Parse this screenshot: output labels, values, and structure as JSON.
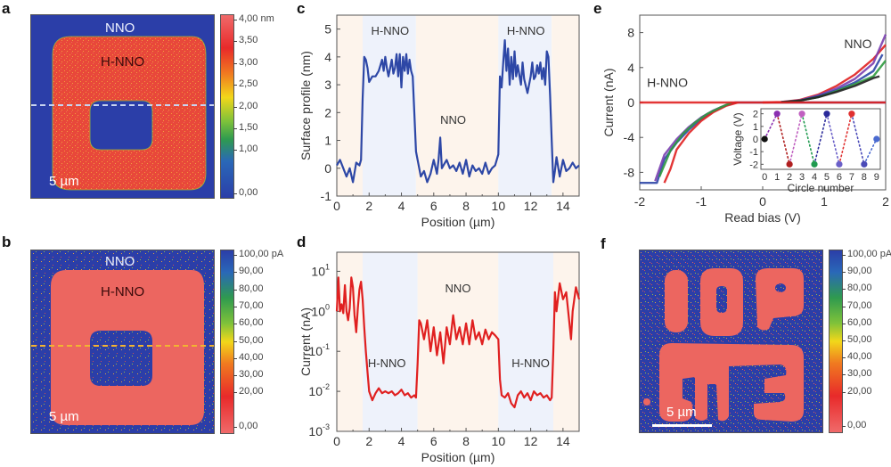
{
  "panels": {
    "a": {
      "letter": "a",
      "label_top": "NNO",
      "label_inner": "H-NNO",
      "scalebar": "5 µm",
      "colorbar_ticks": [
        "4,00 nm",
        "3,50",
        "3,00",
        "2,50",
        "2,00",
        "1,50",
        "1,00",
        "0,00"
      ],
      "line_color": "#c8d4f0"
    },
    "b": {
      "letter": "b",
      "label_top": "NNO",
      "label_inner": "H-NNO",
      "scalebar": "5 µm",
      "colorbar_ticks": [
        "100,00 pA",
        "90,00",
        "80,00",
        "70,00",
        "60,00",
        "50,00",
        "40,00",
        "30,00",
        "20,00",
        "0,00"
      ],
      "line_color": "#f2b431"
    },
    "c": {
      "letter": "c"
    },
    "d": {
      "letter": "d"
    },
    "e": {
      "letter": "e"
    },
    "f": {
      "letter": "f",
      "scalebar": "5 µm",
      "colorbar_ticks": [
        "100,00 pA",
        "90,00",
        "80,00",
        "70,00",
        "60,00",
        "50,00",
        "40,00",
        "30,00",
        "20,00",
        "0,00"
      ]
    }
  },
  "colors": {
    "map_blue": "#2b3ea8",
    "map_red_a": "#e8483a",
    "map_red_b": "#ec6660",
    "line_blue": "#2d47a6",
    "line_red": "#e02020",
    "band_hnno": "#eef2fb",
    "band_nno": "#fdf4ec"
  },
  "chart_data": [
    {
      "id": "c",
      "type": "line",
      "title": "",
      "xlabel": "Position (µm)",
      "ylabel": "Surface profile (nm)",
      "xlim": [
        0,
        15
      ],
      "ylim": [
        -1,
        5.5
      ],
      "xticks": [
        0,
        2,
        4,
        6,
        8,
        10,
        12,
        14
      ],
      "yticks": [
        -1,
        0,
        1,
        2,
        3,
        4,
        5
      ],
      "annotations": [
        {
          "text": "H-NNO",
          "x": 3.3,
          "y": 4.8
        },
        {
          "text": "NNO",
          "x": 7.2,
          "y": 1.6
        },
        {
          "text": "H-NNO",
          "x": 11.7,
          "y": 4.8
        }
      ],
      "bands": [
        {
          "from": 0,
          "to": 1.6,
          "kind": "NNO"
        },
        {
          "from": 1.6,
          "to": 4.9,
          "kind": "H-NNO"
        },
        {
          "from": 4.9,
          "to": 10.0,
          "kind": "NNO"
        },
        {
          "from": 10.0,
          "to": 13.3,
          "kind": "H-NNO"
        },
        {
          "from": 13.3,
          "to": 15,
          "kind": "NNO"
        }
      ],
      "series": [
        {
          "name": "profile",
          "x": [
            0,
            0.2,
            0.4,
            0.6,
            0.8,
            1.0,
            1.2,
            1.4,
            1.5,
            1.6,
            1.7,
            1.8,
            1.9,
            2.0,
            2.2,
            2.4,
            2.6,
            2.7,
            2.8,
            2.9,
            3.0,
            3.1,
            3.2,
            3.4,
            3.5,
            3.6,
            3.7,
            3.8,
            3.9,
            4.0,
            4.1,
            4.2,
            4.3,
            4.4,
            4.5,
            4.6,
            4.7,
            4.8,
            4.9,
            5.0,
            5.2,
            5.4,
            5.6,
            5.8,
            6.0,
            6.2,
            6.3,
            6.4,
            6.5,
            6.6,
            6.8,
            7.0,
            7.2,
            7.4,
            7.6,
            7.8,
            8.0,
            8.2,
            8.4,
            8.6,
            8.8,
            9.0,
            9.2,
            9.4,
            9.6,
            9.8,
            9.9,
            10.0,
            10.1,
            10.2,
            10.3,
            10.4,
            10.5,
            10.6,
            10.7,
            10.8,
            10.9,
            11.0,
            11.1,
            11.2,
            11.4,
            11.5,
            11.6,
            11.8,
            12.0,
            12.1,
            12.2,
            12.3,
            12.4,
            12.5,
            12.6,
            12.7,
            12.8,
            12.9,
            13.0,
            13.1,
            13.2,
            13.3,
            13.4,
            13.5,
            13.6,
            13.8,
            14.0,
            14.2,
            14.4,
            14.6,
            14.8,
            15.0
          ],
          "y": [
            0.1,
            0.3,
            0.0,
            -0.3,
            0.0,
            -0.5,
            0.2,
            0.1,
            0.3,
            2.5,
            4.0,
            3.9,
            3.6,
            3.1,
            3.3,
            3.3,
            3.5,
            3.7,
            3.9,
            3.5,
            4.0,
            3.6,
            3.3,
            3.9,
            3.4,
            3.6,
            4.1,
            3.3,
            4.1,
            2.9,
            4.0,
            3.5,
            4.1,
            3.4,
            3.9,
            3.5,
            3.3,
            2.0,
            0.6,
            0.3,
            -0.3,
            -0.1,
            -0.5,
            -0.2,
            0.3,
            -0.2,
            0.3,
            1.1,
            0.0,
            0.1,
            0.3,
            0.0,
            0.1,
            -0.1,
            0.2,
            -0.2,
            0.3,
            -0.3,
            0.1,
            -0.1,
            0.0,
            -0.2,
            0.2,
            -0.2,
            0.0,
            0.1,
            0.3,
            0.5,
            3.3,
            2.9,
            3.8,
            4.6,
            3.5,
            4.3,
            3.0,
            4.0,
            3.2,
            4.2,
            3.3,
            3.7,
            3.0,
            3.8,
            3.2,
            2.7,
            3.3,
            3.8,
            3.2,
            3.3,
            3.7,
            3.4,
            3.8,
            3.2,
            3.6,
            3.0,
            4.2,
            4.0,
            2.6,
            1.0,
            -0.5,
            -0.1,
            0.4,
            -0.3,
            0.3,
            -0.1,
            0.0,
            0.2,
            0.0,
            0.1
          ]
        }
      ]
    },
    {
      "id": "d",
      "type": "line",
      "title": "",
      "xlabel": "Position (µm)",
      "ylabel": "Current (nA)",
      "yscale": "log",
      "xlim": [
        0,
        15
      ],
      "ylim": [
        0.001,
        30
      ],
      "xticks": [
        0,
        2,
        4,
        6,
        8,
        10,
        12,
        14
      ],
      "yticks": [
        "10^1",
        "10^0",
        "10^-1",
        "10^-2",
        "10^-3"
      ],
      "annotations": [
        {
          "text": "NNO",
          "x": 7.5,
          "y": 3.0
        },
        {
          "text": "H-NNO",
          "x": 3.1,
          "y": 0.04
        },
        {
          "text": "H-NNO",
          "x": 12.0,
          "y": 0.04
        }
      ],
      "bands": [
        {
          "from": 0,
          "to": 1.6,
          "kind": "NNO"
        },
        {
          "from": 1.6,
          "to": 5.0,
          "kind": "H-NNO"
        },
        {
          "from": 5.0,
          "to": 10.0,
          "kind": "NNO"
        },
        {
          "from": 10.0,
          "to": 13.4,
          "kind": "H-NNO"
        },
        {
          "from": 13.4,
          "to": 15,
          "kind": "NNO"
        }
      ],
      "series": [
        {
          "name": "current",
          "x": [
            0,
            0.1,
            0.2,
            0.3,
            0.4,
            0.5,
            0.6,
            0.7,
            0.8,
            0.9,
            1.0,
            1.1,
            1.2,
            1.3,
            1.4,
            1.5,
            1.6,
            1.7,
            1.8,
            1.9,
            2.0,
            2.2,
            2.4,
            2.6,
            2.8,
            3.0,
            3.2,
            3.4,
            3.6,
            3.8,
            4.0,
            4.2,
            4.4,
            4.6,
            4.8,
            4.9,
            5.0,
            5.1,
            5.2,
            5.4,
            5.6,
            5.8,
            6.0,
            6.2,
            6.4,
            6.6,
            6.8,
            7.0,
            7.2,
            7.4,
            7.6,
            7.8,
            8.0,
            8.2,
            8.4,
            8.6,
            8.8,
            9.0,
            9.2,
            9.4,
            9.6,
            9.8,
            10.0,
            10.1,
            10.2,
            10.4,
            10.6,
            10.8,
            11.0,
            11.2,
            11.4,
            11.6,
            11.8,
            12.0,
            12.2,
            12.4,
            12.6,
            12.8,
            13.0,
            13.2,
            13.3,
            13.4,
            13.5,
            13.6,
            13.8,
            14.0,
            14.2,
            14.4,
            14.5,
            14.6,
            14.8,
            15.0
          ],
          "y": [
            1.0,
            7.0,
            1.0,
            1.5,
            0.9,
            4.5,
            1.0,
            0.6,
            1.2,
            7.0,
            4.0,
            0.8,
            0.3,
            1.2,
            3.5,
            5.5,
            2.0,
            0.4,
            0.1,
            0.03,
            0.01,
            0.006,
            0.009,
            0.012,
            0.009,
            0.01,
            0.009,
            0.01,
            0.008,
            0.009,
            0.011,
            0.008,
            0.009,
            0.007,
            0.008,
            0.007,
            0.05,
            0.6,
            0.5,
            0.2,
            0.6,
            0.1,
            0.4,
            0.08,
            0.3,
            0.05,
            0.4,
            0.15,
            0.8,
            0.2,
            0.4,
            0.15,
            0.5,
            0.15,
            0.6,
            0.2,
            0.3,
            0.15,
            0.35,
            0.2,
            0.3,
            0.25,
            0.2,
            0.02,
            0.008,
            0.007,
            0.009,
            0.005,
            0.004,
            0.008,
            0.01,
            0.007,
            0.009,
            0.006,
            0.01,
            0.008,
            0.009,
            0.007,
            0.008,
            0.006,
            0.007,
            0.1,
            3.0,
            1.0,
            5.0,
            2.0,
            3.0,
            0.5,
            0.2,
            1.0,
            4.0,
            2.0
          ]
        }
      ]
    },
    {
      "id": "e",
      "type": "line",
      "title": "",
      "xlabel": "Read bias (V)",
      "ylabel": "Current (nA)",
      "xlim": [
        -2,
        2
      ],
      "ylim": [
        -10,
        10
      ],
      "xticks": [
        -2,
        -1,
        0,
        1,
        2
      ],
      "yticks": [
        -8,
        -4,
        0,
        4,
        8
      ],
      "annotations": [
        {
          "text": "H-NNO",
          "x": -1.55,
          "y": 1.8
        },
        {
          "text": "NNO",
          "x": 1.55,
          "y": 6.2
        }
      ],
      "series": [
        {
          "name": "H-NNO sweep",
          "color": "#2d47a6",
          "x": [
            -2.0,
            -1.72,
            -1.6,
            -1.4,
            -1.2,
            -1.0,
            -0.8,
            -0.6,
            -0.45,
            -0.3,
            0,
            2.0
          ],
          "y": [
            -9.2,
            -9.2,
            -6.5,
            -4.6,
            -3.1,
            -1.9,
            -1.0,
            -0.35,
            0,
            0,
            0,
            0
          ]
        },
        {
          "name": "H-NNO sweep 2",
          "color": "#7a3fb0",
          "x": [
            -1.75,
            -1.6,
            -1.4,
            -1.2,
            -1.0,
            -0.8,
            -0.6,
            -0.45
          ],
          "y": [
            -9.0,
            -6.0,
            -4.2,
            -2.8,
            -1.7,
            -0.9,
            -0.3,
            0
          ]
        },
        {
          "name": "H-NNO sweep 3",
          "color": "#e02020",
          "x": [
            -1.6,
            -1.5,
            -1.4,
            -1.2,
            -1.0,
            -0.8,
            -0.6,
            -0.4
          ],
          "y": [
            -9.2,
            -7.6,
            -5.4,
            -3.5,
            -2.1,
            -1.1,
            -0.4,
            0
          ]
        },
        {
          "name": "H-NNO sweep 4",
          "color": "#2f9a3f",
          "x": [
            -1.68,
            -1.5,
            -1.3,
            -1.1,
            -0.9,
            -0.7,
            -0.5
          ],
          "y": [
            -8.5,
            -5.5,
            -3.6,
            -2.3,
            -1.3,
            -0.6,
            0
          ]
        },
        {
          "name": "NNO sweep red",
          "color": "#e02020",
          "x": [
            -2.0,
            0,
            0.3,
            0.6,
            0.9,
            1.2,
            1.5,
            1.8,
            2.0
          ],
          "y": [
            0,
            0,
            0.05,
            0.3,
            0.9,
            1.9,
            3.2,
            5.0,
            6.6
          ]
        },
        {
          "name": "NNO sweep purple",
          "color": "#7a3fb0",
          "x": [
            0.3,
            0.6,
            0.9,
            1.2,
            1.5,
            1.8,
            2.0
          ],
          "y": [
            0.05,
            0.25,
            0.8,
            1.6,
            2.7,
            4.5,
            7.8
          ]
        },
        {
          "name": "NNO sweep blue",
          "color": "#2d47a6",
          "x": [
            0.3,
            0.6,
            0.9,
            1.2,
            1.5,
            1.8,
            1.95
          ],
          "y": [
            0.04,
            0.2,
            0.7,
            1.4,
            2.3,
            3.6,
            5.5
          ]
        },
        {
          "name": "NNO sweep green",
          "color": "#2f9a3f",
          "x": [
            0.3,
            0.6,
            0.9,
            1.2,
            1.5,
            1.8,
            2.0
          ],
          "y": [
            0.03,
            0.2,
            0.6,
            1.3,
            2.1,
            3.0,
            4.8
          ]
        },
        {
          "name": "NNO sweep dark",
          "color": "#222222",
          "x": [
            0.3,
            0.6,
            0.9,
            1.2,
            1.5,
            1.8,
            1.9
          ],
          "y": [
            0.03,
            0.2,
            0.6,
            1.2,
            1.9,
            2.8,
            3.0
          ]
        },
        {
          "name": "NNO flat red",
          "color": "#e02020",
          "x": [
            0,
            2.0
          ],
          "y": [
            0,
            0
          ]
        }
      ],
      "inset": {
        "type": "scatter",
        "xlabel": "Circle number",
        "ylabel": "Voltage (V)",
        "xlim": [
          -0.3,
          9.3
        ],
        "ylim": [
          -2.4,
          2.4
        ],
        "xticks": [
          0,
          1,
          2,
          3,
          4,
          5,
          6,
          7,
          8,
          9
        ],
        "yticks": [
          -2,
          -1,
          0,
          1,
          2
        ],
        "points": [
          {
            "x": 0,
            "y": 0,
            "color": "#111111"
          },
          {
            "x": 1,
            "y": 2,
            "color": "#8a2fb0"
          },
          {
            "x": 2,
            "y": -2,
            "color": "#b01f1f"
          },
          {
            "x": 3,
            "y": 2,
            "color": "#c060c0"
          },
          {
            "x": 4,
            "y": -2,
            "color": "#1f9a4f"
          },
          {
            "x": 5,
            "y": 2,
            "color": "#2a2a9a"
          },
          {
            "x": 6,
            "y": -2,
            "color": "#6a5fc8"
          },
          {
            "x": 7,
            "y": 2,
            "color": "#e03030"
          },
          {
            "x": 8,
            "y": -2,
            "color": "#4a4ab8"
          },
          {
            "x": 9,
            "y": 0,
            "color": "#4a6ad0"
          }
        ]
      }
    }
  ]
}
